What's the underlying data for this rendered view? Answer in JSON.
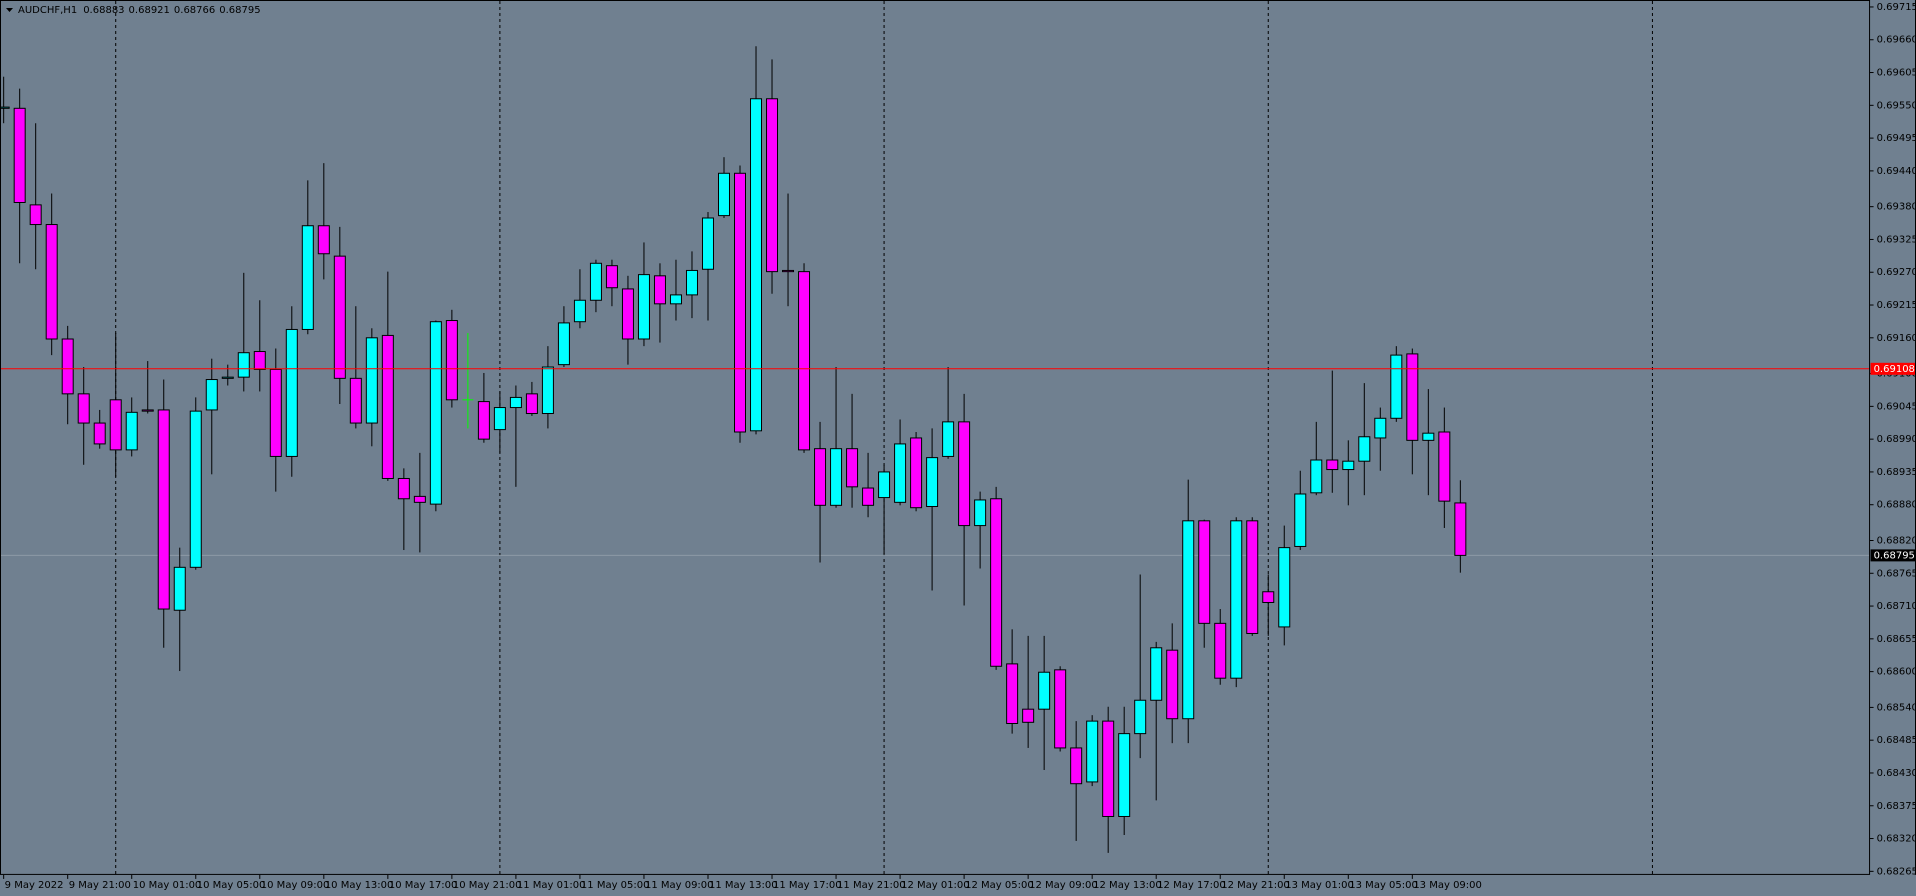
{
  "chart_data": {
    "type": "candlestick",
    "title": "AUDCHF,H1",
    "up_color": "#00ffff",
    "down_color": "#ff00ff",
    "doji_color": "#00ff00",
    "hline": {
      "value": 0.69108,
      "color": "#ff0000"
    },
    "ylim": [
      0.68259,
      0.69725
    ],
    "yticks": [
      0.69715,
      {
        "value": 0.6966,
        "label": "0.69660"
      },
      0.69605,
      {
        "value": 0.6955,
        "label": "0.69550"
      },
      0.69495,
      {
        "value": 0.6944,
        "label": "0.69440"
      },
      {
        "value": 0.6938,
        "label": "0.69380"
      },
      0.69325,
      {
        "value": 0.6927,
        "label": "0.69270"
      },
      0.69215,
      {
        "value": 0.6916,
        "label": "0.69160"
      },
      {
        "value": 0.691,
        "label": "0.69100"
      },
      0.69045,
      {
        "value": 0.6899,
        "label": "0.68990"
      },
      0.68935,
      {
        "value": 0.6888,
        "label": "0.68880"
      },
      {
        "value": 0.6882,
        "label": "0.68820"
      },
      0.68765,
      {
        "value": 0.6871,
        "label": "0.68710"
      },
      0.68655,
      {
        "value": 0.686,
        "label": "0.68600"
      },
      {
        "value": 0.6854,
        "label": "0.68540"
      },
      0.68485,
      {
        "value": 0.6843,
        "label": "0.68430"
      },
      0.68375,
      {
        "value": 0.6832,
        "label": "0.68320"
      },
      0.68265
    ],
    "categories": [
      "9 May 2022",
      null,
      null,
      null,
      "9 May 21:00",
      null,
      null,
      null,
      "10 May 01:00",
      null,
      null,
      null,
      "10 May 05:00",
      null,
      null,
      null,
      "10 May 09:00",
      null,
      null,
      null,
      "10 May 13:00",
      null,
      null,
      null,
      "10 May 17:00",
      null,
      null,
      null,
      "10 May 21:00",
      null,
      null,
      null,
      "11 May 01:00",
      null,
      null,
      null,
      "11 May 05:00",
      null,
      null,
      null,
      "11 May 09:00",
      null,
      null,
      null,
      "11 May 13:00",
      null,
      null,
      null,
      "11 May 17:00",
      null,
      null,
      null,
      "11 May 21:00",
      null,
      null,
      null,
      "12 May 01:00",
      null,
      null,
      null,
      "12 May 05:00",
      null,
      null,
      null,
      "12 May 09:00",
      null,
      null,
      null,
      "12 May 13:00",
      null,
      null,
      null,
      "12 May 17:00",
      null,
      null,
      null,
      "12 May 21:00",
      null,
      null,
      null,
      "13 May 01:00",
      null,
      null,
      null,
      "13 May 05:00",
      null,
      null,
      null,
      "13 May 09:00",
      null,
      null,
      null
    ],
    "open": [
      0.69545,
      0.69545,
      0.69383,
      0.6935,
      0.69158,
      0.69066,
      0.69017,
      0.69056,
      0.68972,
      0.69039,
      0.69039,
      0.68703,
      0.68775,
      0.69039,
      0.69092,
      0.69094,
      0.69137,
      0.69107,
      0.68961,
      0.69174,
      0.69348,
      0.69297,
      0.69092,
      0.69017,
      0.69164,
      0.68924,
      0.68894,
      0.68881,
      0.69189,
      0.69056,
      0.69053,
      0.69006,
      0.69043,
      0.69066,
      0.69033,
      0.69115,
      0.69187,
      0.69223,
      0.69281,
      0.69242,
      0.69158,
      0.69264,
      0.69217,
      0.69232,
      0.69275,
      0.69365,
      0.69436,
      0.69004,
      0.69561,
      0.69273,
      0.69271,
      0.68974,
      0.68879,
      0.68974,
      0.68908,
      0.68892,
      0.68884,
      0.68992,
      0.68877,
      0.68961,
      0.69019,
      0.68845,
      0.6889,
      0.68613,
      0.68537,
      0.68537,
      0.68603,
      0.68472,
      0.68415,
      0.68517,
      0.68357,
      0.68496,
      0.68552,
      0.68636,
      0.68521,
      0.68853,
      0.68681,
      0.68589,
      0.68853,
      0.68734,
      0.68675,
      0.6881,
      0.689,
      0.68955,
      0.68939,
      0.68953,
      0.68992,
      0.69025,
      0.69133,
      0.68988,
      0.69002,
      0.68883
    ],
    "high": [
      0.69598,
      0.69578,
      0.6952,
      0.69402,
      0.6918,
      0.69111,
      0.69039,
      0.69168,
      0.6906,
      0.69121,
      0.6909,
      0.68808,
      0.6906,
      0.69125,
      0.69115,
      0.69269,
      0.69223,
      0.69142,
      0.69213,
      0.69424,
      0.69453,
      0.69346,
      0.69213,
      0.69176,
      0.69271,
      0.68941,
      0.68967,
      0.69189,
      0.69207,
      0.69168,
      0.69101,
      0.6907,
      0.6908,
      0.69086,
      0.69146,
      0.69213,
      0.69275,
      0.69291,
      0.69291,
      0.69264,
      0.6932,
      0.69285,
      0.69291,
      0.69305,
      0.69371,
      0.69463,
      0.69449,
      0.69649,
      0.69627,
      0.69402,
      0.69285,
      0.69019,
      0.69111,
      0.69066,
      0.68967,
      0.68947,
      0.69023,
      0.69002,
      0.69008,
      0.69111,
      0.69066,
      0.68902,
      0.6891,
      0.68671,
      0.6866,
      0.6866,
      0.68609,
      0.68517,
      0.68527,
      0.68541,
      0.68541,
      0.68763,
      0.6865,
      0.68681,
      0.68922,
      0.68855,
      0.68705,
      0.68859,
      0.68859,
      0.68763,
      0.68845,
      0.68937,
      0.69019,
      0.69105,
      0.68988,
      0.69084,
      0.69043,
      0.69146,
      0.69142,
      0.69074,
      0.69043,
      0.68921
    ],
    "low": [
      0.6952,
      0.69285,
      0.69275,
      0.69131,
      0.69015,
      0.68947,
      0.68974,
      0.68927,
      0.68961,
      0.69033,
      0.6864,
      0.68601,
      0.68771,
      0.68931,
      0.6908,
      0.6907,
      0.6907,
      0.68902,
      0.68927,
      0.69166,
      0.69258,
      0.69049,
      0.69008,
      0.68978,
      0.6892,
      0.68804,
      0.688,
      0.68869,
      0.69043,
      0.69008,
      0.68984,
      0.68967,
      0.6891,
      0.69029,
      0.69008,
      0.69111,
      0.69176,
      0.69203,
      0.69213,
      0.69115,
      0.69146,
      0.69152,
      0.69189,
      0.69193,
      0.69189,
      0.69361,
      0.68984,
      0.68998,
      0.69234,
      0.69213,
      0.68967,
      0.68783,
      0.68875,
      0.68875,
      0.68859,
      0.68797,
      0.68879,
      0.68869,
      0.68736,
      0.68957,
      0.68711,
      0.68773,
      0.68603,
      0.68496,
      0.68472,
      0.68435,
      0.68466,
      0.68316,
      0.68408,
      0.68296,
      0.68326,
      0.68455,
      0.68384,
      0.6848,
      0.6848,
      0.6864,
      0.68578,
      0.68574,
      0.6866,
      0.6866,
      0.68644,
      0.68804,
      0.68896,
      0.689,
      0.68879,
      0.68896,
      0.68937,
      0.69019,
      0.68931,
      0.68896,
      0.68841,
      0.68766
    ],
    "close": [
      0.69547,
      0.69387,
      0.6935,
      0.69158,
      0.69066,
      0.69017,
      0.68982,
      0.68972,
      0.69035,
      0.69037,
      0.68705,
      0.68775,
      0.69037,
      0.6909,
      0.69094,
      0.69135,
      0.69107,
      0.68961,
      0.69174,
      0.69348,
      0.69301,
      0.69092,
      0.69017,
      0.6916,
      0.68924,
      0.6889,
      0.68884,
      0.69187,
      0.69056,
      0.69056,
      0.6899,
      0.69043,
      0.6906,
      0.69033,
      0.69111,
      0.69185,
      0.69223,
      0.69285,
      0.69244,
      0.69158,
      0.69266,
      0.69217,
      0.69232,
      0.69273,
      0.69361,
      0.69436,
      0.69002,
      0.69561,
      0.69271,
      0.69271,
      0.68972,
      0.68879,
      0.68974,
      0.6891,
      0.68879,
      0.68935,
      0.68982,
      0.68875,
      0.68959,
      0.69019,
      0.68845,
      0.68888,
      0.68609,
      0.68513,
      0.68515,
      0.68599,
      0.68472,
      0.68412,
      0.68517,
      0.68357,
      0.68496,
      0.68552,
      0.6864,
      0.68521,
      0.68853,
      0.68681,
      0.68589,
      0.68853,
      0.68664,
      0.68716,
      0.68808,
      0.68898,
      0.68955,
      0.68939,
      0.68953,
      0.68994,
      0.69025,
      0.69131,
      0.68988,
      0.69,
      0.68886,
      0.68795
    ]
  }
}
